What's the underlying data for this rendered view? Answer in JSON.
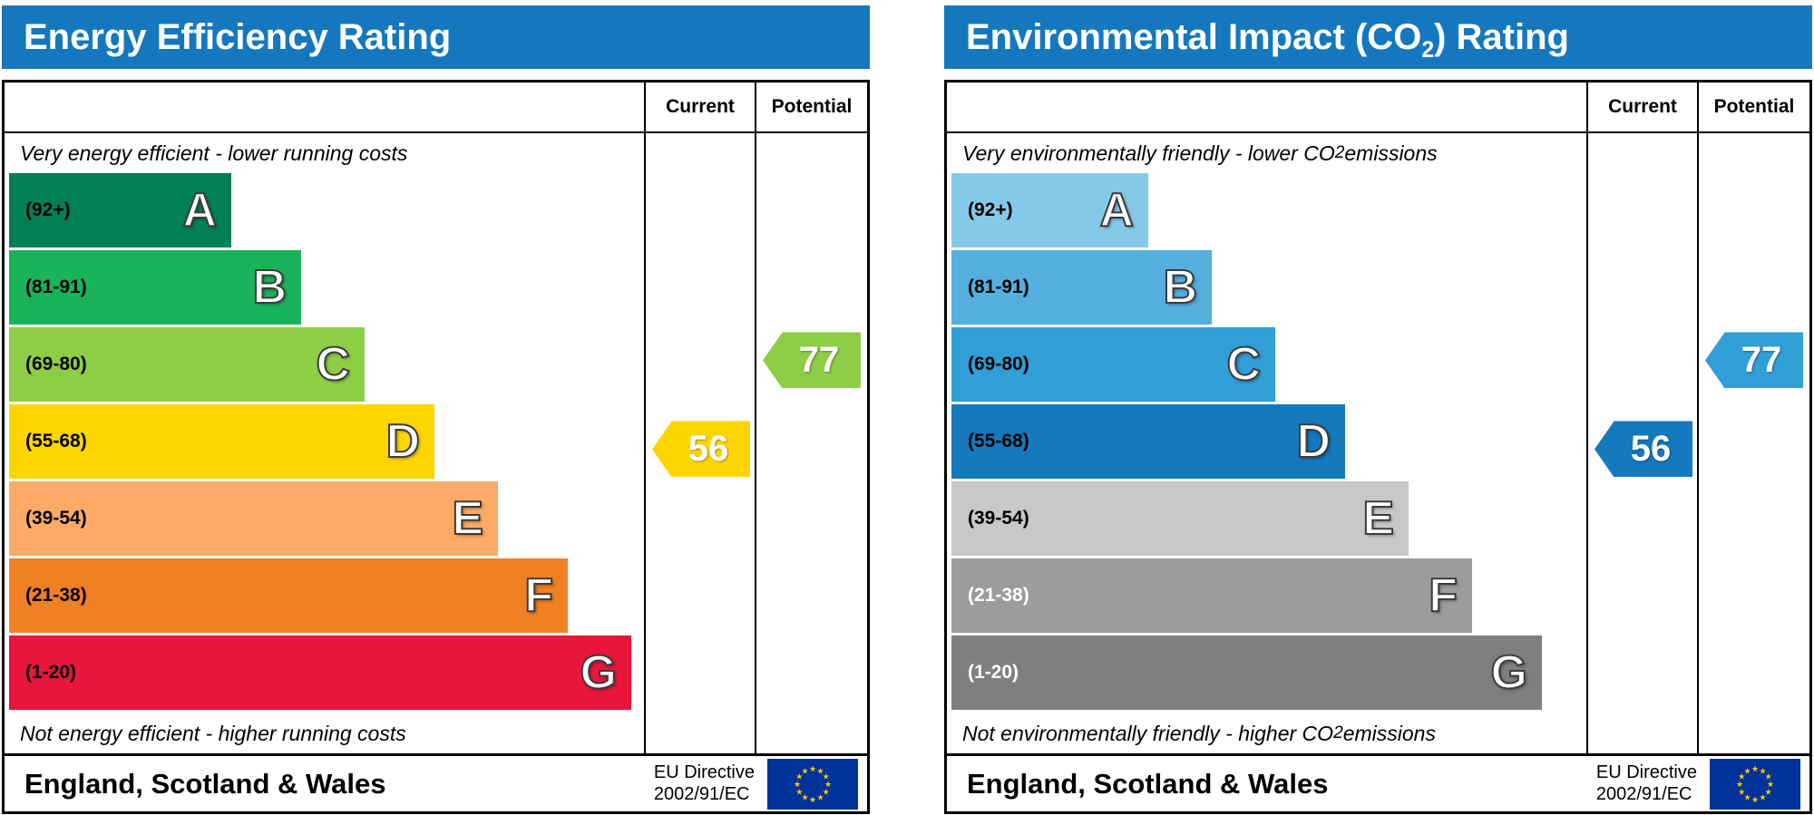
{
  "panels": [
    {
      "name": "energy-efficiency",
      "title_pre": "Energy Efficiency Rating",
      "title_sub": "",
      "title_post": "",
      "columns": {
        "current": "Current",
        "potential": "Potential"
      },
      "top_note_pre": "Very energy efficient - lower running costs",
      "top_note_sub": "",
      "top_note_post": "",
      "bottom_note_pre": "Not energy efficient - higher running costs",
      "bottom_note_sub": "",
      "bottom_note_post": "",
      "bands": [
        {
          "letter": "A",
          "range": "(92+)",
          "min": 92,
          "max": 100,
          "color": "#008054",
          "width_pct": 35,
          "label_color": "#000000"
        },
        {
          "letter": "B",
          "range": "(81-91)",
          "min": 81,
          "max": 91,
          "color": "#19b459",
          "width_pct": 46,
          "label_color": "#000000"
        },
        {
          "letter": "C",
          "range": "(69-80)",
          "min": 69,
          "max": 80,
          "color": "#8dce46",
          "width_pct": 56,
          "label_color": "#000000"
        },
        {
          "letter": "D",
          "range": "(55-68)",
          "min": 55,
          "max": 68,
          "color": "#ffd500",
          "width_pct": 67,
          "label_color": "#000000"
        },
        {
          "letter": "E",
          "range": "(39-54)",
          "min": 39,
          "max": 54,
          "color": "#fcaa65",
          "width_pct": 77,
          "label_color": "#000000"
        },
        {
          "letter": "F",
          "range": "(21-38)",
          "min": 21,
          "max": 38,
          "color": "#ef8023",
          "width_pct": 88,
          "label_color": "#000000"
        },
        {
          "letter": "G",
          "range": "(1-20)",
          "min": 1,
          "max": 20,
          "color": "#e9153b",
          "width_pct": 98,
          "label_color": "#000000"
        }
      ],
      "current": {
        "label": "Current",
        "value": 56,
        "band": "D"
      },
      "potential": {
        "label": "Potential",
        "value": 77,
        "band": "C"
      },
      "footer": {
        "region": "England, Scotland & Wales",
        "directive_line1": "EU Directive",
        "directive_line2": "2002/91/EC"
      }
    },
    {
      "name": "environmental-impact-co2",
      "title_pre": "Environmental Impact (CO",
      "title_sub": "2",
      "title_post": ") Rating",
      "columns": {
        "current": "Current",
        "potential": "Potential"
      },
      "top_note_pre": "Very environmentally friendly - lower CO",
      "top_note_sub": "2",
      "top_note_post": " emissions",
      "bottom_note_pre": "Not environmentally friendly - higher CO",
      "bottom_note_sub": "2",
      "bottom_note_post": " emissions",
      "bands": [
        {
          "letter": "A",
          "range": "(92+)",
          "min": 92,
          "max": 100,
          "color": "#85c9e8",
          "width_pct": 31,
          "label_color": "#000000"
        },
        {
          "letter": "B",
          "range": "(81-91)",
          "min": 81,
          "max": 91,
          "color": "#54aede",
          "width_pct": 41,
          "label_color": "#000000"
        },
        {
          "letter": "C",
          "range": "(69-80)",
          "min": 69,
          "max": 80,
          "color": "#2f9fd6",
          "width_pct": 51,
          "label_color": "#000000"
        },
        {
          "letter": "D",
          "range": "(55-68)",
          "min": 55,
          "max": 68,
          "color": "#1479bd",
          "width_pct": 62,
          "label_color": "#000000"
        },
        {
          "letter": "E",
          "range": "(39-54)",
          "min": 39,
          "max": 54,
          "color": "#c8c8c8",
          "width_pct": 72,
          "label_color": "#000000"
        },
        {
          "letter": "F",
          "range": "(21-38)",
          "min": 21,
          "max": 38,
          "color": "#9c9c9c",
          "width_pct": 82,
          "label_color": "#ffffff"
        },
        {
          "letter": "G",
          "range": "(1-20)",
          "min": 1,
          "max": 20,
          "color": "#7f7f7f",
          "width_pct": 93,
          "label_color": "#ffffff"
        }
      ],
      "current": {
        "label": "Current",
        "value": 56,
        "band": "D"
      },
      "potential": {
        "label": "Potential",
        "value": 77,
        "band": "C"
      },
      "footer": {
        "region": "England, Scotland & Wales",
        "directive_line1": "EU Directive",
        "directive_line2": "2002/91/EC"
      }
    }
  ],
  "colors": {
    "header_blue": "#1578be",
    "eu_flag_blue": "#003399",
    "eu_flag_star": "#ffcc00",
    "energy_current_arrow": "#ffd500",
    "energy_potential_arrow": "#8dce46",
    "co2_current_arrow": "#1479bd",
    "co2_potential_arrow": "#2f9fd6"
  },
  "chart_data": [
    {
      "type": "bar",
      "title": "Energy Efficiency Rating",
      "categories": [
        "A (92+)",
        "B (81-91)",
        "C (69-80)",
        "D (55-68)",
        "E (39-54)",
        "F (21-38)",
        "G (1-20)"
      ],
      "series": [
        {
          "name": "Current",
          "values": [
            56
          ],
          "band": "D"
        },
        {
          "name": "Potential",
          "values": [
            77
          ],
          "band": "C"
        }
      ],
      "scale": [
        1,
        100
      ],
      "top_label": "Very energy efficient - lower running costs",
      "bottom_label": "Not energy efficient - higher running costs",
      "footer": "England, Scotland & Wales — EU Directive 2002/91/EC"
    },
    {
      "type": "bar",
      "title": "Environmental Impact (CO2) Rating",
      "categories": [
        "A (92+)",
        "B (81-91)",
        "C (69-80)",
        "D (55-68)",
        "E (39-54)",
        "F (21-38)",
        "G (1-20)"
      ],
      "series": [
        {
          "name": "Current",
          "values": [
            56
          ],
          "band": "D"
        },
        {
          "name": "Potential",
          "values": [
            77
          ],
          "band": "C"
        }
      ],
      "scale": [
        1,
        100
      ],
      "top_label": "Very environmentally friendly - lower CO2 emissions",
      "bottom_label": "Not environmentally friendly - higher CO2 emissions",
      "footer": "England, Scotland & Wales — EU Directive 2002/91/EC"
    }
  ]
}
